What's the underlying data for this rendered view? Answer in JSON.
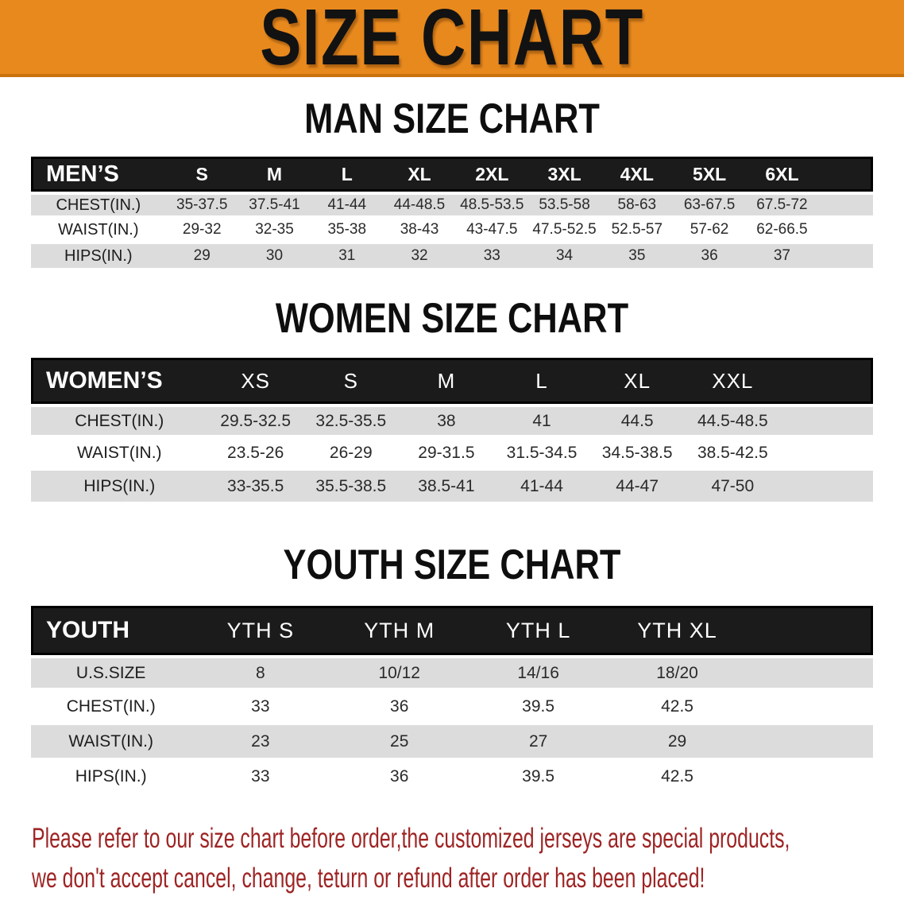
{
  "banner": {
    "title": "SIZE CHART"
  },
  "colors": {
    "banner_bg": "#E8891E",
    "banner_edge": "#C9720E",
    "header_band": "#1B1B1B",
    "stripe_gray": "#DCDCDC",
    "footer_red": "#9E2424",
    "value_ink": "#2A2A2A"
  },
  "sections": [
    {
      "heading": "MAN SIZE CHART",
      "table": {
        "header_label": "MEN’S",
        "columns": [
          "S",
          "M",
          "L",
          "XL",
          "2XL",
          "3XL",
          "4XL",
          "5XL",
          "6XL"
        ],
        "rows": [
          {
            "label": "CHEST(IN.)",
            "values": [
              "35-37.5",
              "37.5-41",
              "41-44",
              "44-48.5",
              "48.5-53.5",
              "53.5-58",
              "58-63",
              "63-67.5",
              "67.5-72"
            ]
          },
          {
            "label": "WAIST(IN.)",
            "values": [
              "29-32",
              "32-35",
              "35-38",
              "38-43",
              "43-47.5",
              "47.5-52.5",
              "52.5-57",
              "57-62",
              "62-66.5"
            ]
          },
          {
            "label": "HIPS(IN.)",
            "values": [
              "29",
              "30",
              "31",
              "32",
              "33",
              "34",
              "35",
              "36",
              "37"
            ]
          }
        ]
      }
    },
    {
      "heading": "WOMEN SIZE CHART",
      "table": {
        "header_label": "WOMEN’S",
        "columns": [
          "XS",
          "S",
          "M",
          "L",
          "XL",
          "XXL"
        ],
        "rows": [
          {
            "label": "CHEST(IN.)",
            "values": [
              "29.5-32.5",
              "32.5-35.5",
              "38",
              "41",
              "44.5",
              "44.5-48.5"
            ]
          },
          {
            "label": "WAIST(IN.)",
            "values": [
              "23.5-26",
              "26-29",
              "29-31.5",
              "31.5-34.5",
              "34.5-38.5",
              "38.5-42.5"
            ]
          },
          {
            "label": "HIPS(IN.)",
            "values": [
              "33-35.5",
              "35.5-38.5",
              "38.5-41",
              "41-44",
              "44-47",
              "47-50"
            ]
          }
        ]
      }
    },
    {
      "heading": "YOUTH SIZE CHART",
      "table": {
        "header_label": "YOUTH",
        "columns": [
          "YTH S",
          "YTH M",
          "YTH L",
          "YTH XL"
        ],
        "rows": [
          {
            "label": "U.S.SIZE",
            "values": [
              "8",
              "10/12",
              "14/16",
              "18/20"
            ]
          },
          {
            "label": "CHEST(IN.)",
            "values": [
              "33",
              "36",
              "39.5",
              "42.5"
            ]
          },
          {
            "label": "WAIST(IN.)",
            "values": [
              "23",
              "25",
              "27",
              "29"
            ]
          },
          {
            "label": "HIPS(IN.)",
            "values": [
              "33",
              "36",
              "39.5",
              "42.5"
            ]
          }
        ]
      }
    }
  ],
  "footer": {
    "line1": "Please refer to our size chart before order,the customized jerseys are special products,",
    "line2": "we don't accept cancel, change, teturn or refund after order has been placed!"
  }
}
